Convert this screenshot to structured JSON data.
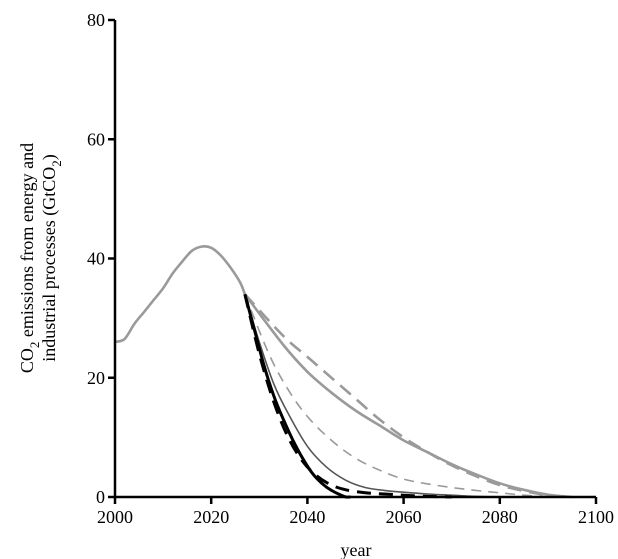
{
  "chart_data": {
    "type": "line",
    "title": "",
    "xlabel": "year",
    "ylabel_line1": "CO",
    "ylabel_line1_sub": "2",
    "ylabel_line1_rest": " emissions from energy and",
    "ylabel_line2": "industrial processes (GtCO",
    "ylabel_line2_sub": "2",
    "ylabel_line2_rest": ")",
    "xlim": [
      2000,
      2100
    ],
    "ylim": [
      0,
      80
    ],
    "xticks": [
      2000,
      2020,
      2040,
      2060,
      2080,
      2100
    ],
    "yticks": [
      0,
      20,
      40,
      60,
      80
    ],
    "grid": false,
    "historical": {
      "color": "#9a9a9a",
      "x": [
        2000,
        2002,
        2004,
        2006,
        2008,
        2010,
        2012,
        2014,
        2016,
        2018,
        2020,
        2022,
        2024,
        2026,
        2027
      ],
      "y": [
        26,
        26.5,
        29,
        31,
        33,
        35,
        37.5,
        39.5,
        41.3,
        42,
        41.8,
        40.5,
        38.5,
        36,
        34
      ]
    },
    "series": [
      {
        "color": "#9a9a9a",
        "width": 2.6,
        "dash": "14,8",
        "x": [
          2027,
          2035,
          2040,
          2045,
          2050,
          2055,
          2060,
          2065,
          2070,
          2075,
          2080,
          2085,
          2090,
          2095
        ],
        "y": [
          34,
          27,
          23.5,
          20,
          16.5,
          13,
          10,
          7.5,
          5.3,
          3.5,
          2,
          1,
          0.3,
          0
        ]
      },
      {
        "color": "#9a9a9a",
        "width": 2.6,
        "dash": "",
        "x": [
          2027,
          2035,
          2040,
          2045,
          2050,
          2055,
          2060,
          2065,
          2070,
          2075,
          2080,
          2085,
          2090,
          2095
        ],
        "y": [
          34,
          25.5,
          21,
          17.5,
          14.5,
          12,
          9.5,
          7.5,
          5.5,
          3.8,
          2.3,
          1.2,
          0.4,
          0
        ]
      },
      {
        "color": "#9a9a9a",
        "width": 1.6,
        "dash": "10,7",
        "x": [
          2027,
          2032,
          2036,
          2040,
          2045,
          2050,
          2055,
          2060,
          2065,
          2070,
          2075,
          2080,
          2085,
          2090
        ],
        "y": [
          34,
          24,
          18,
          13.5,
          9.5,
          6.5,
          4.5,
          3,
          2.2,
          1.6,
          1.1,
          0.7,
          0.3,
          0
        ]
      },
      {
        "color": "#555555",
        "width": 1.6,
        "dash": "",
        "x": [
          2027,
          2030,
          2033,
          2036,
          2040,
          2044,
          2048,
          2052,
          2056,
          2060,
          2065,
          2070,
          2075,
          2080
        ],
        "y": [
          34,
          26,
          19,
          14,
          8.5,
          5,
          2.8,
          1.6,
          1.1,
          0.8,
          0.5,
          0.3,
          0.1,
          0
        ]
      },
      {
        "color": "#000000",
        "width": 3,
        "dash": "14,8",
        "x": [
          2027,
          2030,
          2033,
          2036,
          2039,
          2042,
          2045,
          2048,
          2052,
          2056,
          2060,
          2065,
          2070
        ],
        "y": [
          34,
          24,
          16,
          10,
          6,
          3.5,
          2,
          1.2,
          0.7,
          0.5,
          0.3,
          0.1,
          0
        ]
      },
      {
        "color": "#000000",
        "width": 3,
        "dash": "",
        "x": [
          2027,
          2029,
          2031,
          2033,
          2035,
          2037,
          2039,
          2041,
          2043,
          2045,
          2047,
          2048,
          2049
        ],
        "y": [
          34,
          28,
          22,
          17,
          13,
          9.5,
          6.5,
          4,
          2.3,
          1.1,
          0.3,
          0,
          0
        ]
      }
    ]
  }
}
